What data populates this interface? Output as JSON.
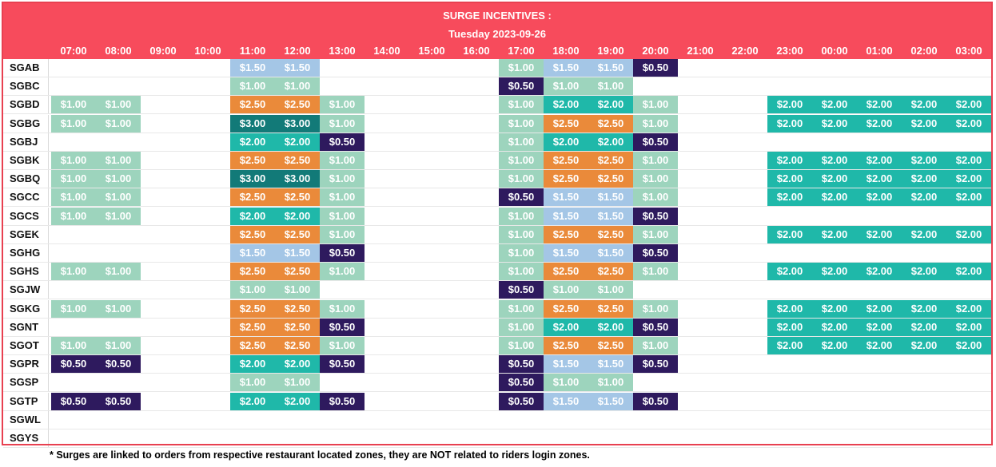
{
  "header": {
    "title": "SURGE INCENTIVES :",
    "date": "Tuesday 2023-09-26"
  },
  "hours": [
    "07:00",
    "08:00",
    "09:00",
    "10:00",
    "11:00",
    "12:00",
    "13:00",
    "14:00",
    "15:00",
    "16:00",
    "17:00",
    "18:00",
    "19:00",
    "20:00",
    "21:00",
    "22:00",
    "23:00",
    "00:00",
    "01:00",
    "02:00",
    "03:00"
  ],
  "colors": {
    "$0.50": "#2e1a5e",
    "$1.00": "#9dd4bd",
    "$1.50": "#a4c6e6",
    "$2.00": "#1fb8a9",
    "$2.50": "#ea8a3a",
    "$3.00": "#127a78"
  },
  "rows": [
    {
      "zone": "SGAB",
      "cells": [
        "",
        "",
        "",
        "",
        "$1.50",
        "$1.50",
        "",
        "",
        "",
        "",
        "$1.00",
        "$1.50",
        "$1.50",
        "$0.50",
        "",
        "",
        "",
        "",
        "",
        "",
        ""
      ]
    },
    {
      "zone": "SGBC",
      "cells": [
        "",
        "",
        "",
        "",
        "$1.00",
        "$1.00",
        "",
        "",
        "",
        "",
        "$0.50",
        "$1.00",
        "$1.00",
        "",
        "",
        "",
        "",
        "",
        "",
        "",
        ""
      ]
    },
    {
      "zone": "SGBD",
      "cells": [
        "$1.00",
        "$1.00",
        "",
        "",
        "$2.50",
        "$2.50",
        "$1.00",
        "",
        "",
        "",
        "$1.00",
        "$2.00",
        "$2.00",
        "$1.00",
        "",
        "",
        "$2.00",
        "$2.00",
        "$2.00",
        "$2.00",
        "$2.00"
      ]
    },
    {
      "zone": "SGBG",
      "cells": [
        "$1.00",
        "$1.00",
        "",
        "",
        "$3.00",
        "$3.00",
        "$1.00",
        "",
        "",
        "",
        "$1.00",
        "$2.50",
        "$2.50",
        "$1.00",
        "",
        "",
        "$2.00",
        "$2.00",
        "$2.00",
        "$2.00",
        "$2.00"
      ]
    },
    {
      "zone": "SGBJ",
      "cells": [
        "",
        "",
        "",
        "",
        "$2.00",
        "$2.00",
        "$0.50",
        "",
        "",
        "",
        "$1.00",
        "$2.00",
        "$2.00",
        "$0.50",
        "",
        "",
        "",
        "",
        "",
        "",
        ""
      ]
    },
    {
      "zone": "SGBK",
      "cells": [
        "$1.00",
        "$1.00",
        "",
        "",
        "$2.50",
        "$2.50",
        "$1.00",
        "",
        "",
        "",
        "$1.00",
        "$2.50",
        "$2.50",
        "$1.00",
        "",
        "",
        "$2.00",
        "$2.00",
        "$2.00",
        "$2.00",
        "$2.00"
      ]
    },
    {
      "zone": "SGBQ",
      "cells": [
        "$1.00",
        "$1.00",
        "",
        "",
        "$3.00",
        "$3.00",
        "$1.00",
        "",
        "",
        "",
        "$1.00",
        "$2.50",
        "$2.50",
        "$1.00",
        "",
        "",
        "$2.00",
        "$2.00",
        "$2.00",
        "$2.00",
        "$2.00"
      ]
    },
    {
      "zone": "SGCC",
      "cells": [
        "$1.00",
        "$1.00",
        "",
        "",
        "$2.50",
        "$2.50",
        "$1.00",
        "",
        "",
        "",
        "$0.50",
        "$1.50",
        "$1.50",
        "$1.00",
        "",
        "",
        "$2.00",
        "$2.00",
        "$2.00",
        "$2.00",
        "$2.00"
      ]
    },
    {
      "zone": "SGCS",
      "cells": [
        "$1.00",
        "$1.00",
        "",
        "",
        "$2.00",
        "$2.00",
        "$1.00",
        "",
        "",
        "",
        "$1.00",
        "$1.50",
        "$1.50",
        "$0.50",
        "",
        "",
        "",
        "",
        "",
        "",
        ""
      ]
    },
    {
      "zone": "SGEK",
      "cells": [
        "",
        "",
        "",
        "",
        "$2.50",
        "$2.50",
        "$1.00",
        "",
        "",
        "",
        "$1.00",
        "$2.50",
        "$2.50",
        "$1.00",
        "",
        "",
        "$2.00",
        "$2.00",
        "$2.00",
        "$2.00",
        "$2.00"
      ]
    },
    {
      "zone": "SGHG",
      "cells": [
        "",
        "",
        "",
        "",
        "$1.50",
        "$1.50",
        "$0.50",
        "",
        "",
        "",
        "$1.00",
        "$1.50",
        "$1.50",
        "$0.50",
        "",
        "",
        "",
        "",
        "",
        "",
        ""
      ]
    },
    {
      "zone": "SGHS",
      "cells": [
        "$1.00",
        "$1.00",
        "",
        "",
        "$2.50",
        "$2.50",
        "$1.00",
        "",
        "",
        "",
        "$1.00",
        "$2.50",
        "$2.50",
        "$1.00",
        "",
        "",
        "$2.00",
        "$2.00",
        "$2.00",
        "$2.00",
        "$2.00"
      ]
    },
    {
      "zone": "SGJW",
      "cells": [
        "",
        "",
        "",
        "",
        "$1.00",
        "$1.00",
        "",
        "",
        "",
        "",
        "$0.50",
        "$1.00",
        "$1.00",
        "",
        "",
        "",
        "",
        "",
        "",
        "",
        ""
      ]
    },
    {
      "zone": "SGKG",
      "cells": [
        "$1.00",
        "$1.00",
        "",
        "",
        "$2.50",
        "$2.50",
        "$1.00",
        "",
        "",
        "",
        "$1.00",
        "$2.50",
        "$2.50",
        "$1.00",
        "",
        "",
        "$2.00",
        "$2.00",
        "$2.00",
        "$2.00",
        "$2.00"
      ]
    },
    {
      "zone": "SGNT",
      "cells": [
        "",
        "",
        "",
        "",
        "$2.50",
        "$2.50",
        "$0.50",
        "",
        "",
        "",
        "$1.00",
        "$2.00",
        "$2.00",
        "$0.50",
        "",
        "",
        "$2.00",
        "$2.00",
        "$2.00",
        "$2.00",
        "$2.00"
      ]
    },
    {
      "zone": "SGOT",
      "cells": [
        "$1.00",
        "$1.00",
        "",
        "",
        "$2.50",
        "$2.50",
        "$1.00",
        "",
        "",
        "",
        "$1.00",
        "$2.50",
        "$2.50",
        "$1.00",
        "",
        "",
        "$2.00",
        "$2.00",
        "$2.00",
        "$2.00",
        "$2.00"
      ]
    },
    {
      "zone": "SGPR",
      "cells": [
        "$0.50",
        "$0.50",
        "",
        "",
        "$2.00",
        "$2.00",
        "$0.50",
        "",
        "",
        "",
        "$0.50",
        "$1.50",
        "$1.50",
        "$0.50",
        "",
        "",
        "",
        "",
        "",
        "",
        ""
      ]
    },
    {
      "zone": "SGSP",
      "cells": [
        "",
        "",
        "",
        "",
        "$1.00",
        "$1.00",
        "",
        "",
        "",
        "",
        "$0.50",
        "$1.00",
        "$1.00",
        "",
        "",
        "",
        "",
        "",
        "",
        "",
        ""
      ]
    },
    {
      "zone": "SGTP",
      "cells": [
        "$0.50",
        "$0.50",
        "",
        "",
        "$2.00",
        "$2.00",
        "$0.50",
        "",
        "",
        "",
        "$0.50",
        "$1.50",
        "$1.50",
        "$0.50",
        "",
        "",
        "",
        "",
        "",
        "",
        ""
      ]
    },
    {
      "zone": "SGWL",
      "cells": [
        "",
        "",
        "",
        "",
        "",
        "",
        "",
        "",
        "",
        "",
        "",
        "",
        "",
        "",
        "",
        "",
        "",
        "",
        "",
        "",
        ""
      ]
    },
    {
      "zone": "SGYS",
      "cells": [
        "",
        "",
        "",
        "",
        "",
        "",
        "",
        "",
        "",
        "",
        "",
        "",
        "",
        "",
        "",
        "",
        "",
        "",
        "",
        "",
        ""
      ]
    }
  ],
  "footnote": "* Surges are linked to orders from respective restaurant located zones, they are NOT related to riders login zones."
}
